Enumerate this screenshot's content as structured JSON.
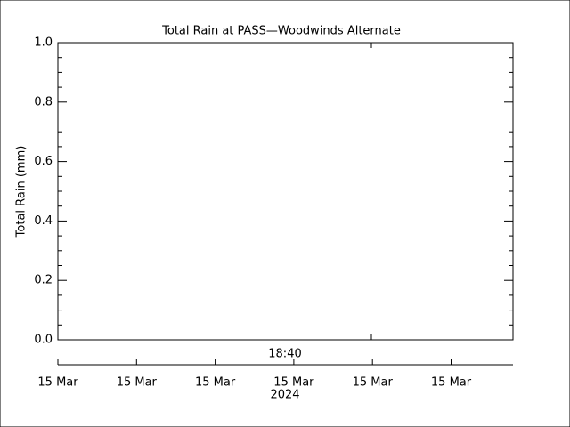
{
  "chart_data": {
    "type": "line",
    "title": "Total Rain at PASS—Woodwinds Alternate",
    "ylabel": "Total Rain (mm)",
    "ylim": [
      0,
      1
    ],
    "yticks": [
      {
        "value": 0,
        "label": "0.0"
      },
      0.2,
      0.4,
      0.6,
      0.8,
      {
        "value": 1,
        "label": "1.0"
      }
    ],
    "time_label": "18:40",
    "date_axis": {
      "categories": [
        "15 Mar",
        "15 Mar",
        "15 Mar",
        "15 Mar",
        "15 Mar",
        "15 Mar"
      ],
      "year": "2024"
    },
    "color": "#000000"
  }
}
